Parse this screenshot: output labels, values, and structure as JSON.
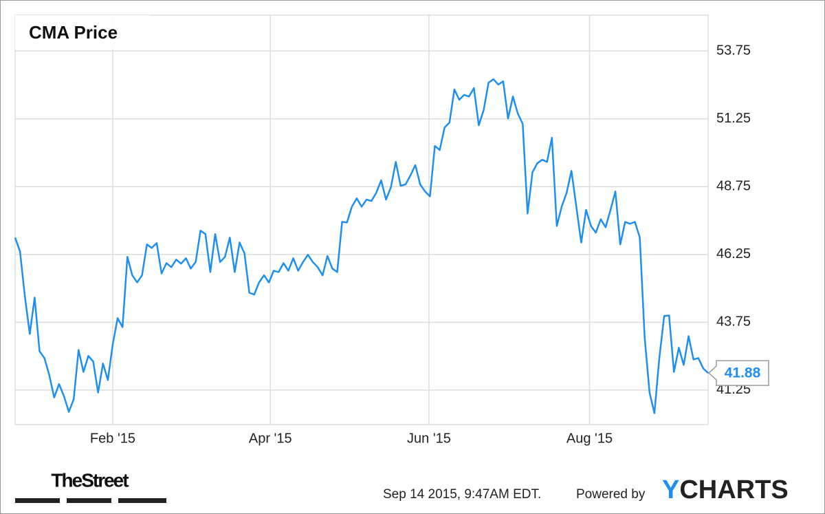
{
  "chart_data": {
    "type": "line",
    "title": "CMA Price",
    "color": "#1e8ff0",
    "grid": true,
    "y_axis_side": "right",
    "ylim": [
      39.98,
      55.07
    ],
    "yticks": [
      41.25,
      43.75,
      46.25,
      48.75,
      51.25,
      53.75
    ],
    "xlim": [
      0,
      142
    ],
    "xticks": [
      {
        "value": 20,
        "label": "Feb '15"
      },
      {
        "value": 52.3,
        "label": "Apr '15"
      },
      {
        "value": 84.8,
        "label": "Jun '15"
      },
      {
        "value": 117.7,
        "label": "Aug '15"
      }
    ],
    "series": [
      {
        "name": "CMA Price",
        "color": "#1e8ff0",
        "values": [
          46.87,
          46.36,
          44.7,
          43.32,
          44.66,
          42.68,
          42.43,
          41.8,
          40.98,
          41.47,
          41.03,
          40.45,
          40.91,
          42.73,
          41.92,
          42.51,
          42.3,
          41.16,
          42.23,
          41.62,
          42.94,
          43.9,
          43.57,
          46.16,
          45.48,
          45.22,
          45.48,
          46.62,
          46.49,
          46.67,
          45.55,
          45.93,
          45.78,
          46.06,
          45.91,
          46.11,
          45.73,
          45.97,
          47.13,
          47.0,
          45.6,
          47.0,
          45.97,
          46.16,
          46.87,
          45.6,
          46.69,
          46.29,
          44.84,
          44.77,
          45.22,
          45.48,
          45.22,
          45.65,
          45.6,
          45.93,
          45.65,
          46.11,
          45.65,
          45.97,
          46.24,
          45.97,
          45.78,
          45.48,
          46.19,
          45.73,
          45.6,
          47.45,
          47.43,
          48.01,
          48.32,
          48.01,
          48.27,
          48.22,
          48.52,
          48.98,
          48.27,
          48.73,
          49.66,
          48.78,
          48.83,
          49.16,
          49.54,
          48.83,
          48.57,
          48.39,
          50.25,
          50.1,
          50.93,
          51.11,
          52.33,
          51.95,
          52.13,
          52.07,
          52.38,
          51.01,
          51.57,
          52.58,
          52.71,
          52.51,
          52.63,
          51.26,
          52.07,
          51.44,
          51.06,
          47.76,
          49.28,
          49.61,
          49.74,
          49.66,
          50.55,
          47.3,
          48.01,
          48.52,
          49.33,
          48.01,
          46.69,
          47.89,
          47.3,
          47.05,
          47.55,
          47.25,
          47.89,
          48.57,
          46.62,
          47.45,
          47.38,
          47.45,
          46.87,
          43.19,
          41.16,
          40.4,
          42.43,
          43.98,
          44.0,
          41.92,
          42.81,
          42.18,
          43.24,
          42.38,
          42.43,
          42.05,
          41.88
        ]
      }
    ],
    "timestamp": "Sep 14 2015, 9:47AM EDT.",
    "powered_by": "Powered by",
    "brand_initial": "Y",
    "brand_rest": "CHARTS",
    "publisher": "TheStreet"
  }
}
